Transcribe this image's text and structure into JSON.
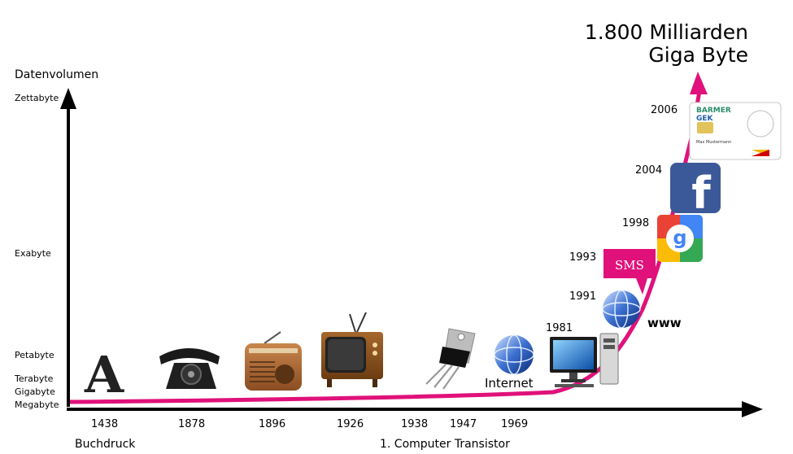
{
  "axis": {
    "y_title": "Datenvolumen",
    "y_levels": [
      "Zettabyte",
      "Exabyte",
      "Petabyte",
      "Terabyte",
      "Gigabyte",
      "Megabyte"
    ]
  },
  "headline": {
    "line1": "1.800 Milliarden",
    "line2": "Giga Byte"
  },
  "timeline": {
    "x_years": [
      "1438",
      "1878",
      "1896",
      "1926",
      "1938",
      "1947",
      "1969"
    ],
    "curve_years": [
      "1981",
      "1991",
      "1993",
      "1998",
      "2004",
      "2006"
    ],
    "footnotes": {
      "print": "Buchdruck",
      "computer": "1. Computer Transistor"
    }
  },
  "icons": {
    "letter_glyph": "A",
    "internet_label": "Internet",
    "www_label": "www",
    "sms_label": "SMS",
    "facebook_glyph": "f",
    "google_glyph": "g",
    "card": {
      "brand1": "BARMER",
      "brand2": "GEK",
      "holder": "Max Mustermann"
    }
  },
  "colors": {
    "curve": "#e0117a",
    "axis": "#000000",
    "facebook": "#3b5998",
    "sms": "#e0117a"
  }
}
